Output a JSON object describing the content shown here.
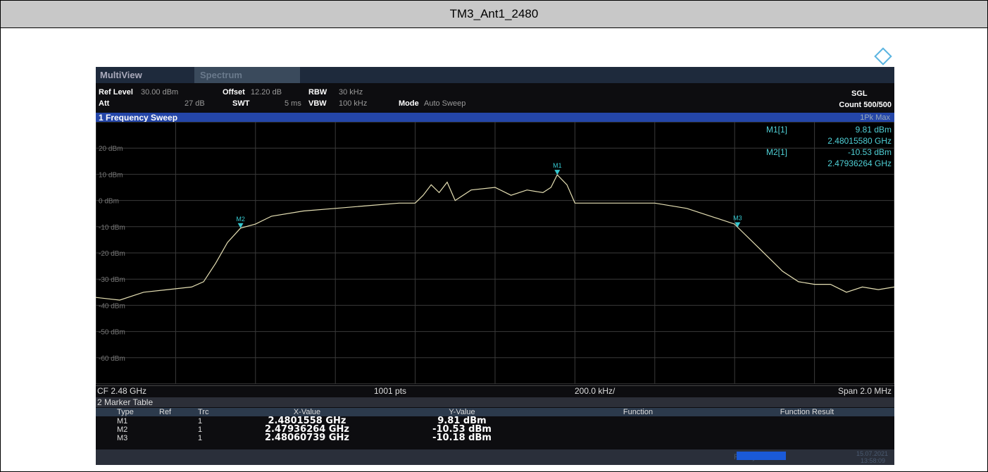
{
  "title": "TM3_Ant1_2480",
  "toolbar": {
    "tabs": [
      "MultiView",
      "Spectrum"
    ]
  },
  "settings": {
    "ref_level_label": "Ref Level",
    "ref_level": "30.00 dBm",
    "offset_label": "Offset",
    "offset": "12.20 dB",
    "rbw_label": "RBW",
    "rbw": "30 kHz",
    "att_label": "Att",
    "att": "27 dB",
    "swt_label": "SWT",
    "swt": "5 ms",
    "vbw_label": "VBW",
    "vbw": "100 kHz",
    "mode_label": "Mode",
    "mode": "Auto Sweep",
    "sgl": "SGL",
    "count": "Count 500/500"
  },
  "window_title": "1 Frequency Sweep",
  "trace_label": "1Pk Max",
  "marker_info": [
    {
      "name": "M1[1]",
      "level": "9.81 dBm",
      "freq": "2.48015580 GHz"
    },
    {
      "name": "M2[1]",
      "level": "-10.53 dBm",
      "freq": "2.47936264 GHz"
    }
  ],
  "chart_data": {
    "type": "line",
    "color": "#e6e0b4",
    "marker_color": "#35c8d0",
    "grid": true,
    "xlim": [
      2.479,
      2.481
    ],
    "ylim": [
      -70,
      30
    ],
    "yticks": [
      {
        "value": 20,
        "label": "20 dBm"
      },
      {
        "value": 10,
        "label": "10 dBm"
      },
      {
        "value": 0,
        "label": "0 dBm"
      },
      {
        "value": -10,
        "label": "-10 dBm"
      },
      {
        "value": -20,
        "label": "-20 dBm"
      },
      {
        "value": -30,
        "label": "-30 dBm"
      },
      {
        "value": -40,
        "label": "-40 dBm"
      },
      {
        "value": -50,
        "label": "-50 dBm"
      },
      {
        "value": -60,
        "label": "-60 dBm"
      }
    ],
    "x": [
      2.479,
      2.47906,
      2.47912,
      2.47918,
      2.47924,
      2.47927,
      2.4793,
      2.47933,
      2.4793626,
      2.4794,
      2.47944,
      2.47952,
      2.4796,
      2.47968,
      2.47976,
      2.4798,
      2.47982,
      2.47984,
      2.47986,
      2.47988,
      2.4799,
      2.47994,
      2.48,
      2.48004,
      2.48008,
      2.48012,
      2.48014,
      2.4801558,
      2.48018,
      2.4802,
      2.48028,
      2.4804,
      2.48048,
      2.48056,
      2.4806,
      2.4806074,
      2.48066,
      2.48072,
      2.48076,
      2.4808,
      2.48084,
      2.48088,
      2.48092,
      2.48096,
      2.481
    ],
    "values": [
      -37,
      -38,
      -35,
      -34,
      -33,
      -31,
      -24,
      -16,
      -10.53,
      -9,
      -6,
      -4,
      -3,
      -2,
      -1,
      -1,
      2,
      6,
      3,
      7,
      0,
      4,
      5,
      2,
      4,
      3,
      5,
      9.81,
      6,
      -1,
      -1,
      -1,
      -3,
      -7,
      -9,
      -10.18,
      -18,
      -27,
      -31,
      -32,
      -32,
      -35,
      -33,
      -34,
      -33
    ],
    "markers": [
      {
        "label": "M1",
        "x": 2.4801558,
        "y": 9.81
      },
      {
        "label": "M2",
        "x": 2.47936264,
        "y": -10.53
      },
      {
        "label": "M3",
        "x": 2.48060739,
        "y": -10.18
      }
    ]
  },
  "footer": {
    "cf": "CF 2.48 GHz",
    "pts": "1001 pts",
    "div": "200.0 kHz/",
    "span": "Span 2.0 MHz"
  },
  "marker_table": {
    "title": "2 Marker Table",
    "columns": [
      "Type",
      "Ref",
      "Trc",
      "X-Value",
      "Y-Value",
      "Function",
      "Function Result"
    ],
    "rows": [
      {
        "type": "M1",
        "trc": "1",
        "x": "2.4801558 GHz",
        "y": "9.81 dBm"
      },
      {
        "type": "M2",
        "trc": "1",
        "x": "2.47936264 GHz",
        "y": "-10.53 dBm"
      },
      {
        "type": "M3",
        "trc": "1",
        "x": "2.48060739 GHz",
        "y": "-10.18 dBm"
      }
    ]
  },
  "status": {
    "ready": "Ready",
    "date": "15.07.2021",
    "time": "13:58:09"
  }
}
